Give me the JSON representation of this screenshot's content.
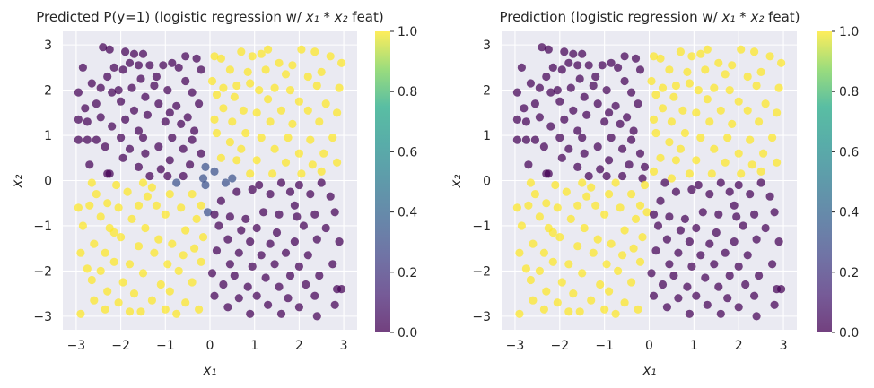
{
  "chart_data": [
    {
      "type": "scatter",
      "title": "Predicted P(y=1) (logistic regression w/ x₁ * x₂ feat)",
      "title_prefix": "Predicted P(y=1) (logistic regression w/ ",
      "title_suffix": " feat)",
      "xlabel": "x₁",
      "ylabel": "x₂",
      "xlim": [
        -3.3,
        3.3
      ],
      "ylim": [
        -3.3,
        3.3
      ],
      "xticks": [
        -3,
        -2,
        -1,
        0,
        1,
        2,
        3
      ],
      "yticks": [
        -3,
        -2,
        -1,
        0,
        1,
        2,
        3
      ],
      "color_rule": "value = predicted probability of class 1, approx 1 when x1*x2 > 0",
      "colorbar": {
        "ticks": [
          "0.0",
          "0.2",
          "0.4",
          "0.6",
          "0.8",
          "1.0"
        ],
        "range": [
          0,
          1
        ],
        "colormap": "viridis"
      }
    },
    {
      "type": "scatter",
      "title": "Prediction (logistic regression w/ x₁ * x₂ feat)",
      "title_prefix": "Prediction (logistic regression w/ ",
      "title_suffix": " feat)",
      "xlabel": "x₁",
      "ylabel": "x₂",
      "xlim": [
        -3.3,
        3.3
      ],
      "ylim": [
        -3.3,
        3.3
      ],
      "xticks": [
        -3,
        -2,
        -1,
        0,
        1,
        2,
        3
      ],
      "yticks": [
        -3,
        -2,
        -1,
        0,
        1,
        2,
        3
      ],
      "color_rule": "value = predicted class (0 or 1), 1 when x1*x2 > 0",
      "colorbar": {
        "ticks": [
          "0.0",
          "0.2",
          "0.4",
          "0.6",
          "0.8",
          "1.0"
        ],
        "range": [
          0,
          1
        ],
        "colormap": "viridis"
      }
    }
  ],
  "points": [
    [
      -2.4,
      2.95
    ],
    [
      -2.25,
      2.9
    ],
    [
      -1.9,
      2.85
    ],
    [
      -1.7,
      2.8
    ],
    [
      -1.5,
      2.8
    ],
    [
      -1.8,
      2.6
    ],
    [
      -1.6,
      2.55
    ],
    [
      -2.15,
      2.5
    ],
    [
      -1.95,
      2.45
    ],
    [
      -1.35,
      2.55
    ],
    [
      -0.55,
      2.75
    ],
    [
      -0.3,
      2.7
    ],
    [
      -0.85,
      2.6
    ],
    [
      -0.7,
      2.5
    ],
    [
      -0.2,
      2.45
    ],
    [
      -1.05,
      2.55
    ],
    [
      -2.85,
      2.5
    ],
    [
      -2.3,
      2.3
    ],
    [
      -1.55,
      2.25
    ],
    [
      -1.2,
      2.3
    ],
    [
      -2.65,
      2.15
    ],
    [
      -2.45,
      2.05
    ],
    [
      -2.05,
      2.0
    ],
    [
      -1.75,
      2.05
    ],
    [
      -1.25,
      2.1
    ],
    [
      -0.55,
      2.2
    ],
    [
      -0.95,
      2.0
    ],
    [
      -2.95,
      1.95
    ],
    [
      -2.2,
      1.95
    ],
    [
      -1.45,
      1.85
    ],
    [
      -0.4,
      1.95
    ],
    [
      -2.55,
      1.7
    ],
    [
      -2.0,
      1.75
    ],
    [
      -1.15,
      1.7
    ],
    [
      -0.75,
      1.65
    ],
    [
      -0.25,
      1.7
    ],
    [
      -2.8,
      1.6
    ],
    [
      -1.7,
      1.55
    ],
    [
      -0.9,
      1.5
    ],
    [
      -2.45,
      1.4
    ],
    [
      -1.9,
      1.35
    ],
    [
      -1.4,
      1.45
    ],
    [
      -0.5,
      1.4
    ],
    [
      -2.95,
      1.35
    ],
    [
      -2.75,
      1.3
    ],
    [
      -1.0,
      1.3
    ],
    [
      -0.65,
      1.25
    ],
    [
      -2.2,
      1.2
    ],
    [
      -1.6,
      1.1
    ],
    [
      -0.35,
      1.1
    ],
    [
      -2.95,
      0.9
    ],
    [
      -2.75,
      0.9
    ],
    [
      -2.55,
      0.9
    ],
    [
      -2.0,
      0.95
    ],
    [
      -1.5,
      0.95
    ],
    [
      -0.85,
      0.95
    ],
    [
      -0.4,
      0.9
    ],
    [
      -2.35,
      0.75
    ],
    [
      -1.8,
      0.7
    ],
    [
      -1.15,
      0.75
    ],
    [
      -0.6,
      0.7
    ],
    [
      -1.45,
      0.6
    ],
    [
      -0.2,
      0.6
    ],
    [
      -1.95,
      0.5
    ],
    [
      -0.9,
      0.45
    ],
    [
      -2.7,
      0.35
    ],
    [
      -0.45,
      0.35
    ],
    [
      -1.6,
      0.3
    ],
    [
      -2.3,
      0.15
    ],
    [
      -2.25,
      0.15
    ],
    [
      -1.1,
      0.25
    ],
    [
      -0.1,
      0.3
    ],
    [
      -1.35,
      0.1
    ],
    [
      -0.95,
      0.1
    ],
    [
      -0.6,
      0.1
    ],
    [
      -0.15,
      0.05
    ],
    [
      0.1,
      2.75
    ],
    [
      0.25,
      2.7
    ],
    [
      0.7,
      2.85
    ],
    [
      0.95,
      2.75
    ],
    [
      1.15,
      2.8
    ],
    [
      1.3,
      2.9
    ],
    [
      1.55,
      2.6
    ],
    [
      1.85,
      2.55
    ],
    [
      2.05,
      2.9
    ],
    [
      2.35,
      2.85
    ],
    [
      2.7,
      2.75
    ],
    [
      2.95,
      2.6
    ],
    [
      0.45,
      2.45
    ],
    [
      0.85,
      2.4
    ],
    [
      1.25,
      2.45
    ],
    [
      1.7,
      2.35
    ],
    [
      2.2,
      2.3
    ],
    [
      2.5,
      2.4
    ],
    [
      0.05,
      2.2
    ],
    [
      0.3,
      2.05
    ],
    [
      0.6,
      2.1
    ],
    [
      0.9,
      2.15
    ],
    [
      1.1,
      2.0
    ],
    [
      1.45,
      2.05
    ],
    [
      1.8,
      2.0
    ],
    [
      2.4,
      2.1
    ],
    [
      2.9,
      2.05
    ],
    [
      0.15,
      1.9
    ],
    [
      0.55,
      1.85
    ],
    [
      1.3,
      1.8
    ],
    [
      2.0,
      1.75
    ],
    [
      2.6,
      1.7
    ],
    [
      0.3,
      1.6
    ],
    [
      0.75,
      1.55
    ],
    [
      1.05,
      1.5
    ],
    [
      1.6,
      1.55
    ],
    [
      2.2,
      1.55
    ],
    [
      2.85,
      1.5
    ],
    [
      0.1,
      1.35
    ],
    [
      0.5,
      1.3
    ],
    [
      1.35,
      1.3
    ],
    [
      1.85,
      1.25
    ],
    [
      2.45,
      1.3
    ],
    [
      0.15,
      1.05
    ],
    [
      0.8,
      1.05
    ],
    [
      1.15,
      0.95
    ],
    [
      1.75,
      0.95
    ],
    [
      2.25,
      0.9
    ],
    [
      2.75,
      0.95
    ],
    [
      0.45,
      0.85
    ],
    [
      0.7,
      0.7
    ],
    [
      1.45,
      0.7
    ],
    [
      2.0,
      0.6
    ],
    [
      2.55,
      0.6
    ],
    [
      0.25,
      0.5
    ],
    [
      0.6,
      0.45
    ],
    [
      1.05,
      0.45
    ],
    [
      1.7,
      0.4
    ],
    [
      2.3,
      0.35
    ],
    [
      2.85,
      0.4
    ],
    [
      0.1,
      0.2
    ],
    [
      0.9,
      0.15
    ],
    [
      1.4,
      0.15
    ],
    [
      2.05,
      0.15
    ],
    [
      2.5,
      0.2
    ],
    [
      0.5,
      0.05
    ],
    [
      -2.95,
      -0.6
    ],
    [
      -2.7,
      -0.55
    ],
    [
      -2.3,
      -0.5
    ],
    [
      -2.05,
      -0.6
    ],
    [
      -1.6,
      -0.55
    ],
    [
      -1.2,
      -0.55
    ],
    [
      -0.65,
      -0.6
    ],
    [
      -0.2,
      -0.55
    ],
    [
      -2.55,
      -0.3
    ],
    [
      -1.85,
      -0.25
    ],
    [
      -1.4,
      -0.35
    ],
    [
      -0.9,
      -0.3
    ],
    [
      -0.4,
      -0.3
    ],
    [
      -2.65,
      -0.05
    ],
    [
      -2.1,
      -0.1
    ],
    [
      -1.5,
      -0.05
    ],
    [
      -0.75,
      -0.05
    ],
    [
      -0.1,
      -0.1
    ],
    [
      -2.45,
      -0.8
    ],
    [
      -1.75,
      -0.85
    ],
    [
      -1.0,
      -0.75
    ],
    [
      -0.3,
      -0.85
    ],
    [
      -2.85,
      -1.0
    ],
    [
      -2.25,
      -1.05
    ],
    [
      -1.45,
      -1.05
    ],
    [
      -0.55,
      -1.1
    ],
    [
      -2.0,
      -1.25
    ],
    [
      -1.15,
      -1.3
    ],
    [
      -0.15,
      -1.25
    ],
    [
      -2.6,
      -1.4
    ],
    [
      -1.6,
      -1.45
    ],
    [
      -0.85,
      -1.4
    ],
    [
      -0.35,
      -1.5
    ],
    [
      -2.9,
      -1.6
    ],
    [
      -2.35,
      -1.6
    ],
    [
      -1.25,
      -1.6
    ],
    [
      -0.6,
      -1.65
    ],
    [
      -2.15,
      -1.8
    ],
    [
      -1.8,
      -1.85
    ],
    [
      -0.95,
      -1.85
    ],
    [
      -0.2,
      -1.8
    ],
    [
      -2.75,
      -1.95
    ],
    [
      -2.45,
      -2.0
    ],
    [
      -1.5,
      -2.05
    ],
    [
      -0.7,
      -2.0
    ],
    [
      -2.65,
      -2.2
    ],
    [
      -1.95,
      -2.25
    ],
    [
      -1.1,
      -2.3
    ],
    [
      -0.4,
      -2.25
    ],
    [
      -2.3,
      -2.45
    ],
    [
      -1.7,
      -2.5
    ],
    [
      -0.9,
      -2.45
    ],
    [
      -2.6,
      -2.65
    ],
    [
      -2.05,
      -2.7
    ],
    [
      -1.3,
      -2.65
    ],
    [
      -0.55,
      -2.7
    ],
    [
      -2.35,
      -2.85
    ],
    [
      -1.8,
      -2.9
    ],
    [
      -1.0,
      -2.85
    ],
    [
      -0.25,
      -2.85
    ],
    [
      -2.9,
      -2.95
    ],
    [
      -1.55,
      -2.9
    ],
    [
      -0.75,
      -2.95
    ],
    [
      -2.15,
      -1.15
    ],
    [
      -1.3,
      -0.15
    ],
    [
      -0.05,
      -0.7
    ],
    [
      0.1,
      -0.75
    ],
    [
      0.45,
      -0.8
    ],
    [
      0.8,
      -0.85
    ],
    [
      1.2,
      -0.7
    ],
    [
      1.55,
      -0.75
    ],
    [
      1.95,
      -0.8
    ],
    [
      2.35,
      -0.75
    ],
    [
      2.8,
      -0.7
    ],
    [
      0.6,
      -0.25
    ],
    [
      0.95,
      -0.2
    ],
    [
      1.35,
      -0.3
    ],
    [
      1.8,
      -0.25
    ],
    [
      2.25,
      -0.3
    ],
    [
      2.7,
      -0.35
    ],
    [
      0.35,
      -0.05
    ],
    [
      1.1,
      -0.1
    ],
    [
      1.6,
      -0.05
    ],
    [
      2.0,
      -0.1
    ],
    [
      2.5,
      -0.05
    ],
    [
      0.2,
      -1.0
    ],
    [
      0.7,
      -1.1
    ],
    [
      1.05,
      -1.05
    ],
    [
      1.5,
      -1.15
    ],
    [
      2.1,
      -1.0
    ],
    [
      2.6,
      -1.05
    ],
    [
      0.4,
      -1.3
    ],
    [
      0.9,
      -1.35
    ],
    [
      1.35,
      -1.4
    ],
    [
      1.9,
      -1.35
    ],
    [
      2.4,
      -1.3
    ],
    [
      2.9,
      -1.35
    ],
    [
      0.15,
      -1.55
    ],
    [
      0.65,
      -1.6
    ],
    [
      1.15,
      -1.65
    ],
    [
      1.7,
      -1.6
    ],
    [
      2.2,
      -1.65
    ],
    [
      0.45,
      -1.85
    ],
    [
      0.95,
      -1.9
    ],
    [
      1.45,
      -1.85
    ],
    [
      2.0,
      -1.9
    ],
    [
      2.75,
      -1.85
    ],
    [
      0.05,
      -2.05
    ],
    [
      0.55,
      -2.1
    ],
    [
      1.25,
      -2.15
    ],
    [
      1.8,
      -2.1
    ],
    [
      2.45,
      -2.1
    ],
    [
      0.3,
      -2.3
    ],
    [
      0.85,
      -2.35
    ],
    [
      1.55,
      -2.35
    ],
    [
      2.15,
      -2.3
    ],
    [
      2.85,
      -2.4
    ],
    [
      0.1,
      -2.55
    ],
    [
      0.65,
      -2.6
    ],
    [
      1.05,
      -2.55
    ],
    [
      1.75,
      -2.6
    ],
    [
      2.35,
      -2.55
    ],
    [
      0.4,
      -2.8
    ],
    [
      1.3,
      -2.75
    ],
    [
      2.0,
      -2.8
    ],
    [
      2.8,
      -2.75
    ],
    [
      0.9,
      -2.95
    ],
    [
      1.6,
      -2.95
    ],
    [
      2.4,
      -3.0
    ],
    [
      2.95,
      -2.4
    ],
    [
      0.25,
      -0.45
    ],
    [
      1.9,
      -0.55
    ]
  ]
}
